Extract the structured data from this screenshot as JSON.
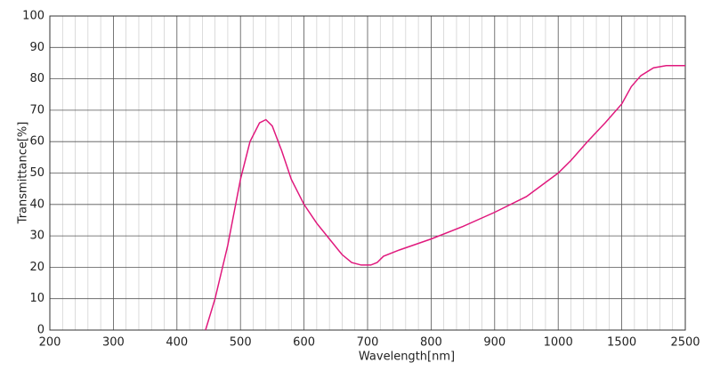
{
  "chart_data": {
    "type": "line",
    "x_label": "Wavelength[nm]",
    "y_label": "Transmittance[%]",
    "x": [
      445,
      460,
      480,
      500,
      515,
      530,
      540,
      550,
      565,
      580,
      600,
      620,
      640,
      660,
      675,
      690,
      705,
      715,
      725,
      750,
      800,
      850,
      900,
      950,
      1000,
      1100,
      1230,
      1370,
      1500,
      1650,
      1800,
      2000,
      2200,
      2500
    ],
    "series": [
      {
        "color": "#e0197d",
        "values": [
          0,
          10,
          27,
          48,
          60,
          66,
          67,
          65,
          57,
          48,
          40,
          34,
          29,
          24,
          21.5,
          20.7,
          20.7,
          21.5,
          23.5,
          25.5,
          29,
          33,
          37.5,
          42.5,
          50,
          54,
          60,
          66,
          72,
          77.5,
          81,
          83.5,
          84.2,
          84.2
        ]
      }
    ],
    "xlim": [
      200,
      2500
    ],
    "xticks": [
      200,
      300,
      400,
      500,
      600,
      700,
      800,
      900,
      1000,
      1500,
      2500
    ],
    "x_scale": "piecewise",
    "ylim": [
      0,
      100
    ],
    "yticks": [
      0,
      10,
      20,
      30,
      40,
      50,
      60,
      70,
      80,
      90,
      100
    ],
    "grid": true,
    "x_minor_divisions": 5
  }
}
